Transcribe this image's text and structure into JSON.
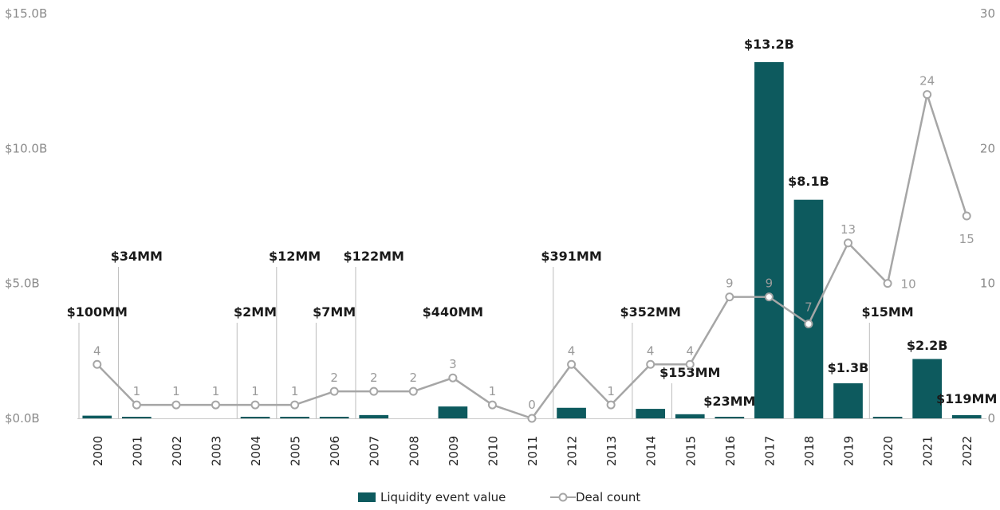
{
  "chart_data": {
    "type": "bar",
    "categories": [
      "2000",
      "2001",
      "2002",
      "2003",
      "2004",
      "2005",
      "2006",
      "2007",
      "2008",
      "2009",
      "2010",
      "2011",
      "2012",
      "2013",
      "2014",
      "2015",
      "2016",
      "2017",
      "2018",
      "2019",
      "2020",
      "2021",
      "2022"
    ],
    "series": [
      {
        "name": "Liquidity event value",
        "type": "bar",
        "axis": "left",
        "unit": "$B",
        "values": [
          0.1,
          0.034,
          0,
          0,
          0.002,
          0.012,
          0.007,
          0.122,
          0,
          0.44,
          0,
          0,
          0.391,
          0,
          0.352,
          0.153,
          0.023,
          13.2,
          8.1,
          1.3,
          0.015,
          2.2,
          0.119
        ],
        "labels": [
          "$100MM",
          "$34MM",
          "",
          "",
          "$2MM",
          "$12MM",
          "$7MM",
          "$122MM",
          "",
          "$440MM",
          "",
          "",
          "$391MM",
          "",
          "$352MM",
          "$153MM",
          "$23MM",
          "$13.2B",
          "$8.1B",
          "$1.3B",
          "$15MM",
          "$2.2B",
          "$119MM"
        ]
      },
      {
        "name": "Deal count",
        "type": "line",
        "axis": "right",
        "values": [
          4,
          1,
          1,
          1,
          1,
          1,
          2,
          2,
          2,
          3,
          1,
          0,
          4,
          1,
          4,
          4,
          9,
          9,
          7,
          13,
          10,
          24,
          15
        ]
      }
    ],
    "y_left": {
      "range": [
        0,
        15
      ],
      "ticks": [
        "$0.0B",
        "$5.0B",
        "$10.0B",
        "$15.0B"
      ]
    },
    "y_right": {
      "range": [
        0,
        30
      ],
      "ticks": [
        "0",
        "10",
        "20",
        "30"
      ]
    },
    "grid": false,
    "legend_position": "bottom-center",
    "colors": {
      "bar": "#0d5a5e",
      "line": "#a6a6a6",
      "axis": "#c8c8c8"
    }
  }
}
